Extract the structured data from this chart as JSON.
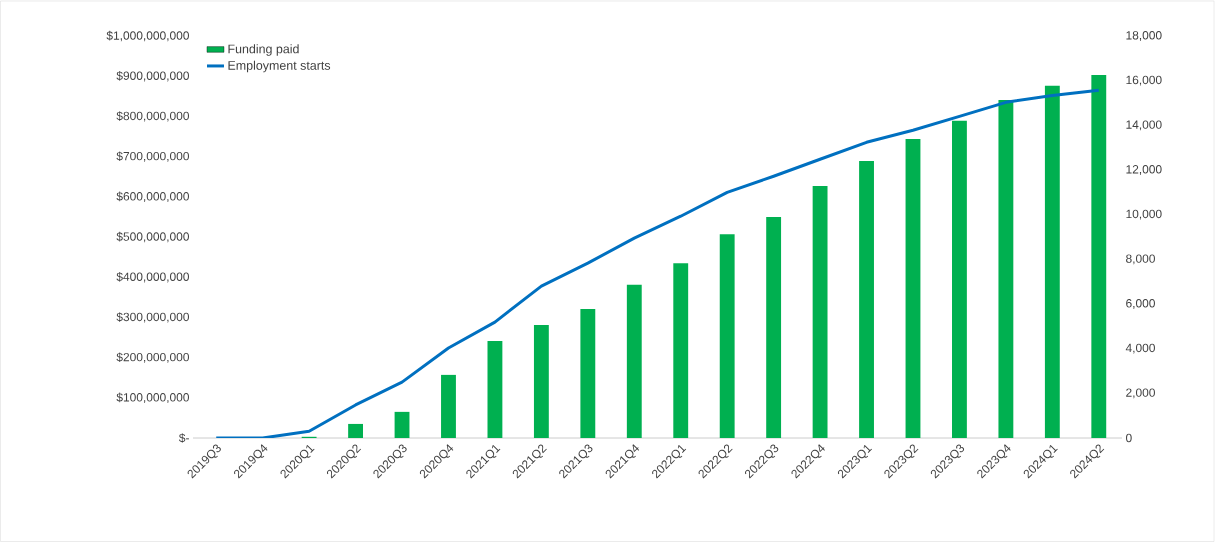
{
  "chart_data": {
    "type": "bar",
    "categories": [
      "2019Q3",
      "2019Q4",
      "2020Q1",
      "2020Q2",
      "2020Q3",
      "2020Q4",
      "2021Q1",
      "2021Q2",
      "2021Q3",
      "2021Q4",
      "2022Q1",
      "2022Q2",
      "2022Q3",
      "2022Q4",
      "2023Q1",
      "2023Q2",
      "2023Q3",
      "2023Q4",
      "2024Q1",
      "2024Q2"
    ],
    "series": [
      {
        "name": "Funding paid",
        "color": "#00b050",
        "values": [
          0,
          0,
          3000000,
          35000000,
          65000000,
          157000000,
          241000000,
          281000000,
          321000000,
          381000000,
          435000000,
          507000000,
          550000000,
          627000000,
          689000000,
          744000000,
          789000000,
          841000000,
          876000000,
          903000000
        ]
      },
      {
        "name": "Employment starts",
        "type": "line",
        "axis": "y2",
        "color": "#0070c0",
        "values": [
          0,
          0,
          300,
          1480,
          2500,
          4030,
          5190,
          6800,
          7830,
          8950,
          9930,
          11000,
          11720,
          12480,
          13240,
          13780,
          14400,
          15030,
          15340,
          15570
        ]
      }
    ],
    "ylim": [
      0,
      1000000000
    ],
    "yticks": [
      {
        "value": 0,
        "label": "$-"
      },
      {
        "value": 100000000,
        "label": "$100,000,000"
      },
      {
        "value": 200000000,
        "label": "$200,000,000"
      },
      {
        "value": 300000000,
        "label": "$300,000,000"
      },
      {
        "value": 400000000,
        "label": "$400,000,000"
      },
      {
        "value": 500000000,
        "label": "$500,000,000"
      },
      {
        "value": 600000000,
        "label": "$600,000,000"
      },
      {
        "value": 700000000,
        "label": "$700,000,000"
      },
      {
        "value": 800000000,
        "label": "$800,000,000"
      },
      {
        "value": 900000000,
        "label": "$900,000,000"
      },
      {
        "value": 1000000000,
        "label": "$1,000,000,000"
      }
    ],
    "y2lim": [
      0,
      18000
    ],
    "y2ticks": [
      0,
      {
        "value": 2000,
        "label": "2,000"
      },
      {
        "value": 4000,
        "label": "4,000"
      },
      {
        "value": 6000,
        "label": "6,000"
      },
      {
        "value": 8000,
        "label": "8,000"
      },
      {
        "value": 10000,
        "label": "10,000"
      },
      {
        "value": 12000,
        "label": "12,000"
      },
      {
        "value": 14000,
        "label": "14,000"
      },
      {
        "value": 16000,
        "label": "16,000"
      },
      {
        "value": 18000,
        "label": "18,000"
      }
    ],
    "legend": "top left"
  }
}
